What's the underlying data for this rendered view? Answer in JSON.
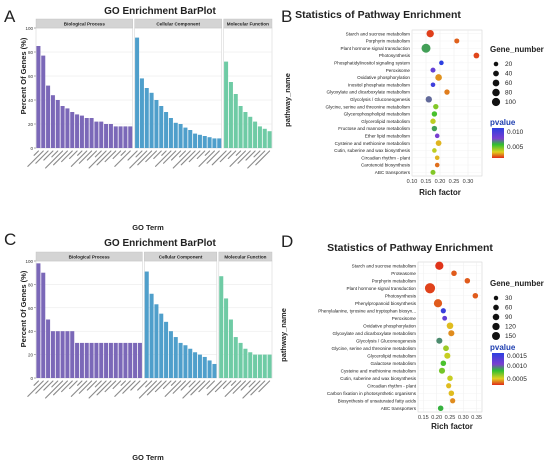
{
  "panel_letters": [
    "A",
    "B",
    "C",
    "D"
  ],
  "chart_data": [
    {
      "id": "A",
      "type": "bar",
      "title": "GO Enrichment BarPlot",
      "xlabel": "GO Term",
      "ylabel": "Percent Of Genes (%)",
      "ylim": [
        0,
        100
      ],
      "yticks": [
        0,
        20,
        40,
        60,
        80,
        100
      ],
      "grid": true,
      "facets": [
        {
          "name": "Biological Process",
          "color": "#7B68B8",
          "values": [
            85,
            77,
            52,
            44,
            40,
            35,
            33,
            30,
            28,
            27,
            25,
            25,
            22,
            22,
            20,
            20,
            18,
            18,
            18,
            18
          ]
        },
        {
          "name": "Cellular Component",
          "color": "#4F9FCB",
          "values": [
            92,
            58,
            50,
            46,
            40,
            35,
            30,
            25,
            21,
            20,
            17,
            15,
            12,
            11,
            10,
            9,
            8,
            8
          ]
        },
        {
          "name": "Molecular Function",
          "color": "#6FCBA5",
          "values": [
            72,
            55,
            45,
            35,
            30,
            26,
            22,
            18,
            16,
            14
          ]
        }
      ]
    },
    {
      "id": "B",
      "type": "scatter",
      "title": "Statistics of Pathway Enrichment",
      "xlabel": "Rich factor",
      "ylabel": "pathway_name",
      "xlim": [
        0.1,
        0.35
      ],
      "xticks": [
        "0.10",
        "0.15",
        "0.20",
        "0.25",
        "0.30"
      ],
      "grid": true,
      "legend_size_title": "Gene_number",
      "legend_size": [
        "20",
        "40",
        "60",
        "80",
        "100"
      ],
      "legend_color_title": "pvalue",
      "legend_color": [
        "0.010",
        "0.005"
      ],
      "color_range": [
        0.0,
        0.012
      ],
      "points": [
        {
          "name": "Starch and sucrose metabolism",
          "x": 0.165,
          "size": 60,
          "p": 0.0003
        },
        {
          "name": "Porphyrin metabolism",
          "x": 0.26,
          "size": 20,
          "p": 0.0008
        },
        {
          "name": "Plant hormone signal transduction",
          "x": 0.15,
          "size": 100,
          "p": 0.006
        },
        {
          "name": "Photosynthesis",
          "x": 0.33,
          "size": 30,
          "p": 0.0004
        },
        {
          "name": "Phosphatidylinositol signaling system",
          "x": 0.205,
          "size": 15,
          "p": 0.012
        },
        {
          "name": "Peroxisome",
          "x": 0.175,
          "size": 20,
          "p": 0.009
        },
        {
          "name": "Oxidative phosphorylation",
          "x": 0.195,
          "size": 45,
          "p": 0.0015
        },
        {
          "name": "Inositol phosphate metabolism",
          "x": 0.175,
          "size": 15,
          "p": 0.011
        },
        {
          "name": "Glyoxylate and dicarboxylate metabolism",
          "x": 0.225,
          "size": 25,
          "p": 0.0012
        },
        {
          "name": "Glycolysis / Gluconeogenesis",
          "x": 0.16,
          "size": 40,
          "p": 0.007
        },
        {
          "name": "Glycine, serine and threonine metabolism",
          "x": 0.185,
          "size": 25,
          "p": 0.004
        },
        {
          "name": "Glycerophospholipid metabolism",
          "x": 0.18,
          "size": 25,
          "p": 0.005
        },
        {
          "name": "Glycerolipid metabolism",
          "x": 0.175,
          "size": 25,
          "p": 0.003
        },
        {
          "name": "Fructose and mannose metabolism",
          "x": 0.18,
          "size": 25,
          "p": 0.006
        },
        {
          "name": "Ether lipid metabolism",
          "x": 0.19,
          "size": 15,
          "p": 0.008
        },
        {
          "name": "Cysteine and methionine metabolism",
          "x": 0.195,
          "size": 30,
          "p": 0.002
        },
        {
          "name": "Cutin, suberine and wax biosynthesis",
          "x": 0.18,
          "size": 15,
          "p": 0.003
        },
        {
          "name": "Circadian rhythm - plant",
          "x": 0.19,
          "size": 15,
          "p": 0.002
        },
        {
          "name": "Carotenoid biosynthesis",
          "x": 0.19,
          "size": 15,
          "p": 0.001
        },
        {
          "name": "ABC transporters",
          "x": 0.175,
          "size": 20,
          "p": 0.004
        }
      ]
    },
    {
      "id": "C",
      "type": "bar",
      "title": "GO Enrichment BarPlot",
      "xlabel": "GO Term",
      "ylabel": "Percent Of Genes (%)",
      "ylim": [
        0,
        100
      ],
      "yticks": [
        0,
        20,
        40,
        60,
        80,
        100
      ],
      "grid": true,
      "facets": [
        {
          "name": "Biological Process",
          "color": "#7B68B8",
          "values": [
            98,
            90,
            50,
            40,
            40,
            40,
            40,
            40,
            30,
            30,
            30,
            30,
            30,
            30,
            30,
            30,
            30,
            30,
            30,
            30,
            30,
            30
          ]
        },
        {
          "name": "Cellular Component",
          "color": "#4F9FCB",
          "values": [
            91,
            72,
            63,
            55,
            48,
            40,
            35,
            30,
            28,
            25,
            22,
            20,
            18,
            15,
            12
          ]
        },
        {
          "name": "Molecular Function",
          "color": "#6FCBA5",
          "values": [
            87,
            68,
            50,
            35,
            30,
            25,
            22,
            20,
            20,
            20,
            20
          ]
        }
      ]
    },
    {
      "id": "D",
      "type": "scatter",
      "title": "Statistics of Pathway Enrichment",
      "xlabel": "Rich factor",
      "ylabel": "pathway_name",
      "xlim": [
        0.13,
        0.37
      ],
      "xticks": [
        "0.15",
        "0.20",
        "0.25",
        "0.30",
        "0.35"
      ],
      "grid": true,
      "legend_size_title": "Gene_number",
      "legend_size": [
        "30",
        "60",
        "90",
        "120",
        "150"
      ],
      "legend_color_title": "pvalue",
      "legend_color": [
        "0.0015",
        "0.0010",
        "0.0005"
      ],
      "color_range": [
        0.0,
        0.0017
      ],
      "points": [
        {
          "name": "Starch and sucrose metabolism",
          "x": 0.21,
          "size": 90,
          "p": 2e-05
        },
        {
          "name": "Proteasome",
          "x": 0.265,
          "size": 30,
          "p": 0.0001
        },
        {
          "name": "Porphyrin metabolism",
          "x": 0.315,
          "size": 30,
          "p": 0.0001
        },
        {
          "name": "Plant hormone signal transduction",
          "x": 0.175,
          "size": 150,
          "p": 5e-05
        },
        {
          "name": "Photosynthesis",
          "x": 0.345,
          "size": 30,
          "p": 0.0001
        },
        {
          "name": "Phenylpropanoid biosynthesis",
          "x": 0.205,
          "size": 90,
          "p": 0.0001
        },
        {
          "name": "Phenylalanine, tyrosine and tryptophan biosyn...",
          "x": 0.225,
          "size": 25,
          "p": 0.0016
        },
        {
          "name": "Peroxisome",
          "x": 0.23,
          "size": 20,
          "p": 0.0013
        },
        {
          "name": "Oxidative phosphorylation",
          "x": 0.25,
          "size": 50,
          "p": 0.0003
        },
        {
          "name": "Glyoxylate and dicarboxylate metabolism",
          "x": 0.255,
          "size": 40,
          "p": 0.0002
        },
        {
          "name": "Glycolysis / Gluconeogenesis",
          "x": 0.21,
          "size": 40,
          "p": 0.0009
        },
        {
          "name": "Glycine, serine and threonine metabolism",
          "x": 0.235,
          "size": 35,
          "p": 0.0005
        },
        {
          "name": "Glycerolipid metabolism",
          "x": 0.24,
          "size": 40,
          "p": 0.0004
        },
        {
          "name": "Galactose metabolism",
          "x": 0.225,
          "size": 30,
          "p": 0.0007
        },
        {
          "name": "Cysteine and methionine metabolism",
          "x": 0.22,
          "size": 40,
          "p": 0.0006
        },
        {
          "name": "Cutin, suberine and wax biosynthesis",
          "x": 0.25,
          "size": 30,
          "p": 0.0004
        },
        {
          "name": "Circadian rhythm - plant",
          "x": 0.245,
          "size": 25,
          "p": 0.0003
        },
        {
          "name": "Carbon fixation in photosynthetic organisms",
          "x": 0.255,
          "size": 30,
          "p": 0.0003
        },
        {
          "name": "Biosynthesis of unsaturated fatty acids",
          "x": 0.26,
          "size": 25,
          "p": 0.0002
        },
        {
          "name": "ABC transporters",
          "x": 0.215,
          "size": 30,
          "p": 0.0008
        }
      ]
    }
  ]
}
